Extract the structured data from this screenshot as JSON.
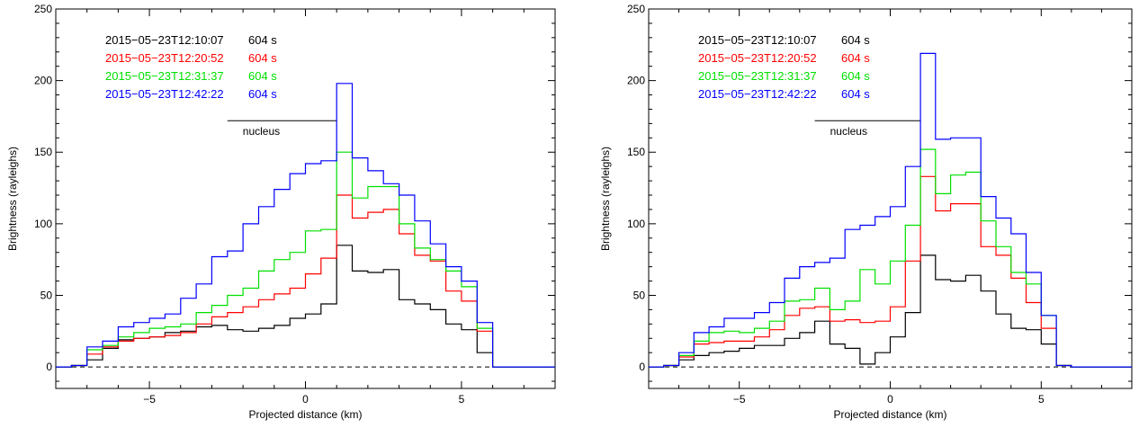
{
  "chart_data": [
    {
      "type": "line",
      "step": true,
      "xlabel": "Projected distance (km)",
      "ylabel": "Brightness (rayleighs)",
      "xlim": [
        -8,
        8
      ],
      "ylim": [
        -15,
        250
      ],
      "xticks": [
        -5,
        0,
        5
      ],
      "yticks": [
        0,
        50,
        100,
        150,
        200,
        250
      ],
      "xtick_labels": [
        "−5",
        "0",
        "5"
      ],
      "ytick_labels": [
        "0",
        "50",
        "100",
        "150",
        "200",
        "250"
      ],
      "zero_line": "dashed",
      "nucleus": {
        "label": "nucleus",
        "x_start": -2.5,
        "x_end": 1.0,
        "y": 172
      },
      "legend_position": "top-left",
      "edges": [
        -8,
        -7.5,
        -7,
        -6.5,
        -6,
        -5.5,
        -5,
        -4.5,
        -4,
        -3.5,
        -3,
        -2.5,
        -2,
        -1.5,
        -1,
        -0.5,
        0,
        0.5,
        1,
        1.5,
        2,
        2.5,
        3,
        3.5,
        4,
        4.5,
        5,
        5.5,
        6,
        6.5,
        7,
        7.5,
        8
      ],
      "series": [
        {
          "name": "2015−05−23T12:10:07",
          "exposure": "604 s",
          "color": "#000000",
          "values": [
            0,
            1,
            5,
            13,
            19,
            20,
            21,
            24,
            25,
            28,
            29,
            26,
            25,
            27,
            29,
            34,
            37,
            44,
            85,
            67,
            66,
            68,
            47,
            44,
            40,
            30,
            26,
            10,
            0,
            0,
            0,
            0
          ]
        },
        {
          "name": "2015−05−23T12:20:52",
          "exposure": "604 s",
          "color": "#ff0000",
          "values": [
            0,
            1,
            9,
            14,
            18,
            20,
            21,
            22,
            24,
            30,
            35,
            38,
            42,
            47,
            51,
            55,
            65,
            76,
            120,
            104,
            108,
            110,
            93,
            78,
            74,
            53,
            46,
            25,
            0,
            0,
            0,
            0
          ]
        },
        {
          "name": "2015−05−23T12:31:37",
          "exposure": "604 s",
          "color": "#00e000",
          "values": [
            0,
            1,
            12,
            15,
            21,
            24,
            27,
            28,
            30,
            38,
            43,
            50,
            55,
            67,
            75,
            80,
            95,
            96,
            150,
            118,
            126,
            126,
            100,
            83,
            75,
            67,
            56,
            27,
            0,
            0,
            0,
            0
          ]
        },
        {
          "name": "2015−05−23T12:42:22",
          "exposure": "604 s",
          "color": "#0000ff",
          "values": [
            0,
            1,
            14,
            18,
            28,
            31,
            34,
            37,
            48,
            58,
            77,
            81,
            100,
            112,
            124,
            135,
            142,
            144,
            198,
            146,
            137,
            128,
            120,
            102,
            86,
            70,
            60,
            31,
            0,
            0,
            0,
            0
          ]
        }
      ]
    },
    {
      "type": "line",
      "step": true,
      "xlabel": "Projected distance (km)",
      "ylabel": "Brightness (rayleighs)",
      "xlim": [
        -8,
        8
      ],
      "ylim": [
        -15,
        250
      ],
      "xticks": [
        -5,
        0,
        5
      ],
      "yticks": [
        0,
        50,
        100,
        150,
        200,
        250
      ],
      "xtick_labels": [
        "−5",
        "0",
        "5"
      ],
      "ytick_labels": [
        "0",
        "50",
        "100",
        "150",
        "200",
        "250"
      ],
      "zero_line": "dashed",
      "nucleus": {
        "label": "nucleus",
        "x_start": -2.5,
        "x_end": 1.0,
        "y": 172
      },
      "legend_position": "top-left",
      "edges": [
        -8,
        -7.5,
        -7,
        -6.5,
        -6,
        -5.5,
        -5,
        -4.5,
        -4,
        -3.5,
        -3,
        -2.5,
        -2,
        -1.5,
        -1,
        -0.5,
        0,
        0.5,
        1,
        1.5,
        2,
        2.5,
        3,
        3.5,
        4,
        4.5,
        5,
        5.5,
        6,
        6.5,
        7,
        7.5,
        8
      ],
      "series": [
        {
          "name": "2015−05−23T12:10:07",
          "exposure": "604 s",
          "color": "#000000",
          "values": [
            0,
            1,
            5,
            8,
            10,
            11,
            13,
            15,
            15,
            20,
            24,
            32,
            16,
            13,
            2,
            10,
            21,
            38,
            78,
            61,
            60,
            64,
            53,
            37,
            27,
            26,
            16,
            1,
            0,
            0,
            0,
            0
          ]
        },
        {
          "name": "2015−05−23T12:20:52",
          "exposure": "604 s",
          "color": "#ff0000",
          "values": [
            0,
            1,
            7,
            16,
            17,
            18,
            18,
            21,
            26,
            36,
            41,
            42,
            32,
            33,
            31,
            32,
            42,
            74,
            133,
            109,
            114,
            114,
            84,
            78,
            62,
            45,
            27,
            1,
            0,
            0,
            0,
            0
          ]
        },
        {
          "name": "2015−05−23T12:31:37",
          "exposure": "604 s",
          "color": "#00e000",
          "values": [
            0,
            1,
            8,
            18,
            24,
            25,
            24,
            27,
            32,
            46,
            47,
            55,
            40,
            46,
            68,
            58,
            74,
            99,
            152,
            121,
            134,
            136,
            102,
            84,
            66,
            58,
            36,
            1,
            0,
            0,
            0,
            0
          ]
        },
        {
          "name": "2015−05−23T12:42:22",
          "exposure": "604 s",
          "color": "#0000ff",
          "values": [
            0,
            1,
            10,
            24,
            28,
            34,
            34,
            38,
            45,
            62,
            70,
            73,
            76,
            96,
            99,
            105,
            112,
            140,
            219,
            159,
            160,
            160,
            119,
            104,
            93,
            66,
            36,
            1,
            0,
            0,
            0,
            0
          ]
        }
      ]
    }
  ]
}
